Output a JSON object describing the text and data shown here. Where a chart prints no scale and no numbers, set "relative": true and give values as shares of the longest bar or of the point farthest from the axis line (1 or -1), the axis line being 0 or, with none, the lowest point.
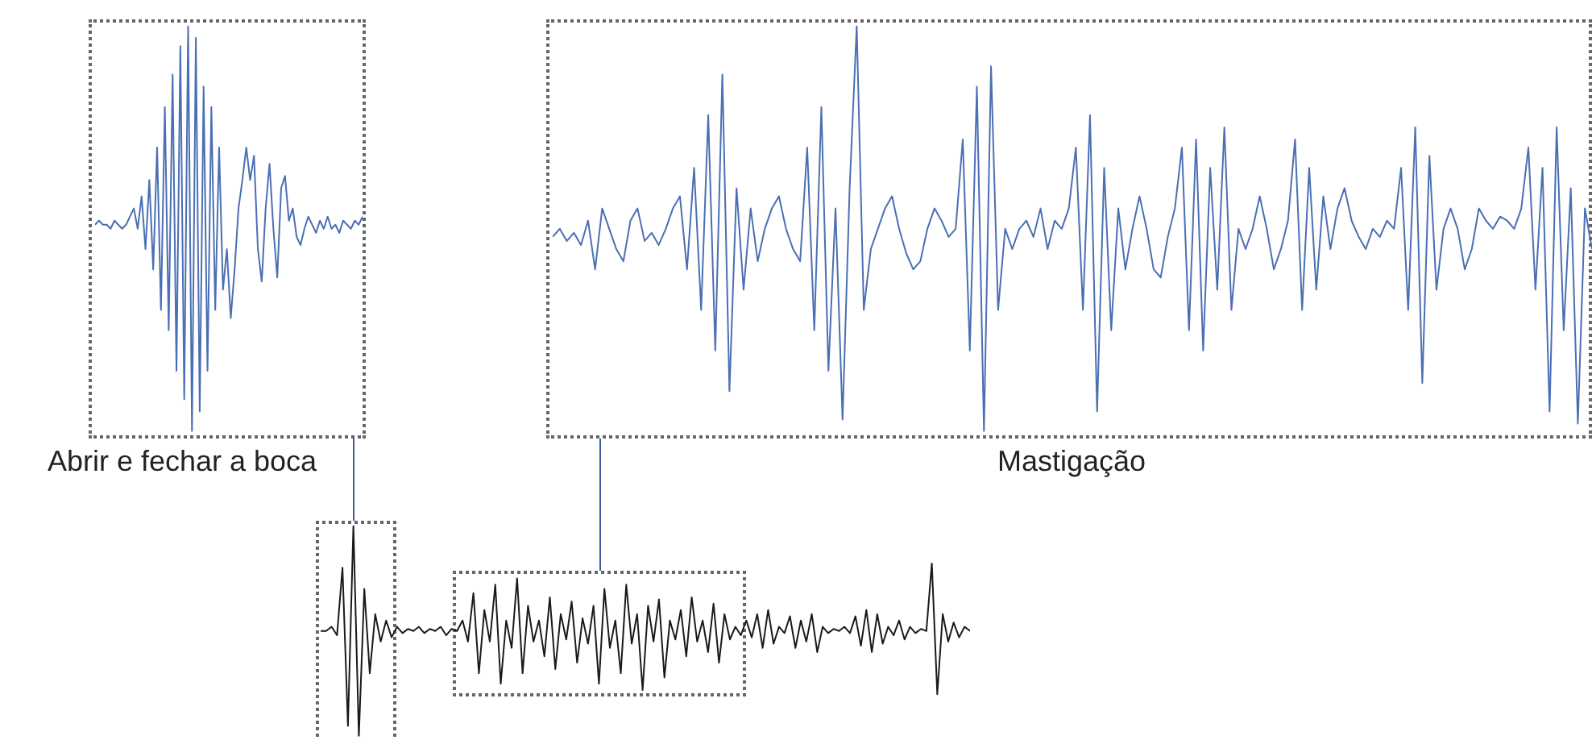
{
  "chart_data": [
    {
      "type": "line",
      "relative": true,
      "xlabel": "Abrir e fechar a boca",
      "color": "#4a6fb3",
      "marker": "none",
      "categories": [
        null,
        null,
        null,
        null,
        null,
        null,
        null,
        null,
        null,
        null,
        null,
        null,
        null,
        null,
        null,
        null,
        null,
        null,
        null,
        null,
        null,
        null,
        null,
        null,
        null,
        null,
        null,
        null,
        null,
        null,
        null,
        null,
        null,
        null,
        null,
        null,
        null,
        null,
        null,
        null,
        null,
        null,
        null,
        null,
        null,
        null,
        null,
        null,
        null,
        null,
        null,
        null,
        null,
        null,
        null,
        null,
        null,
        null,
        null,
        null,
        null,
        null,
        null,
        null,
        null,
        null,
        null,
        null,
        null,
        null
      ],
      "values": [
        0.51,
        0.52,
        0.51,
        0.51,
        0.5,
        0.52,
        0.51,
        0.5,
        0.51,
        0.53,
        0.55,
        0.5,
        0.58,
        0.45,
        0.62,
        0.4,
        0.7,
        0.3,
        0.8,
        0.25,
        0.88,
        0.15,
        0.95,
        0.08,
        1.0,
        0.0,
        0.97,
        0.05,
        0.85,
        0.15,
        0.8,
        0.3,
        0.7,
        0.35,
        0.45,
        0.28,
        0.4,
        0.55,
        0.62,
        0.7,
        0.62,
        0.68,
        0.45,
        0.37,
        0.55,
        0.66,
        0.5,
        0.38,
        0.6,
        0.63,
        0.52,
        0.55,
        0.48,
        0.46,
        0.5,
        0.53,
        0.51,
        0.49,
        0.52,
        0.5,
        0.53,
        0.5,
        0.51,
        0.49,
        0.52,
        0.51,
        0.5,
        0.52,
        0.51,
        0.53
      ]
    },
    {
      "type": "line",
      "relative": true,
      "xlabel": "Mastigação",
      "color": "#4a6fb3",
      "marker": "none",
      "categories": [
        null,
        null,
        null,
        null,
        null,
        null,
        null,
        null,
        null,
        null,
        null,
        null,
        null,
        null,
        null,
        null,
        null,
        null,
        null,
        null,
        null,
        null,
        null,
        null,
        null,
        null,
        null,
        null,
        null,
        null,
        null,
        null,
        null,
        null,
        null,
        null,
        null,
        null,
        null,
        null,
        null,
        null,
        null,
        null,
        null,
        null,
        null,
        null,
        null,
        null,
        null,
        null,
        null,
        null,
        null,
        null,
        null,
        null,
        null,
        null,
        null,
        null,
        null,
        null,
        null,
        null,
        null,
        null,
        null,
        null,
        null,
        null,
        null,
        null,
        null,
        null,
        null,
        null,
        null,
        null,
        null,
        null,
        null,
        null,
        null,
        null,
        null,
        null,
        null,
        null,
        null,
        null,
        null,
        null,
        null,
        null,
        null,
        null,
        null,
        null,
        null,
        null,
        null,
        null,
        null,
        null,
        null,
        null,
        null,
        null,
        null,
        null,
        null,
        null,
        null,
        null,
        null,
        null,
        null,
        null,
        null,
        null,
        null,
        null,
        null,
        null,
        null,
        null,
        null,
        null,
        null,
        null,
        null,
        null,
        null,
        null,
        null,
        null,
        null,
        null,
        null,
        null,
        null,
        null,
        null,
        null,
        null,
        null
      ],
      "values": [
        0.48,
        0.5,
        0.47,
        0.49,
        0.46,
        0.52,
        0.4,
        0.55,
        0.5,
        0.45,
        0.42,
        0.52,
        0.55,
        0.47,
        0.49,
        0.46,
        0.5,
        0.55,
        0.58,
        0.4,
        0.65,
        0.3,
        0.78,
        0.2,
        0.88,
        0.1,
        0.6,
        0.35,
        0.55,
        0.42,
        0.5,
        0.55,
        0.58,
        0.5,
        0.45,
        0.42,
        0.7,
        0.25,
        0.8,
        0.15,
        0.55,
        0.03,
        0.6,
        1.0,
        0.3,
        0.45,
        0.5,
        0.55,
        0.58,
        0.5,
        0.44,
        0.4,
        0.42,
        0.5,
        0.55,
        0.52,
        0.48,
        0.5,
        0.72,
        0.2,
        0.85,
        0.0,
        0.9,
        0.3,
        0.5,
        0.45,
        0.5,
        0.52,
        0.48,
        0.55,
        0.45,
        0.52,
        0.5,
        0.55,
        0.7,
        0.3,
        0.78,
        0.05,
        0.65,
        0.25,
        0.55,
        0.4,
        0.5,
        0.58,
        0.5,
        0.4,
        0.38,
        0.48,
        0.55,
        0.7,
        0.25,
        0.72,
        0.2,
        0.65,
        0.35,
        0.75,
        0.3,
        0.5,
        0.45,
        0.5,
        0.58,
        0.5,
        0.4,
        0.45,
        0.52,
        0.72,
        0.3,
        0.65,
        0.35,
        0.58,
        0.45,
        0.55,
        0.6,
        0.52,
        0.48,
        0.45,
        0.5,
        0.48,
        0.52,
        0.5,
        0.65,
        0.3,
        0.75,
        0.12,
        0.68,
        0.35,
        0.5,
        0.55,
        0.5,
        0.4,
        0.45,
        0.55,
        0.52,
        0.5,
        0.53,
        0.52,
        0.5,
        0.55,
        0.7,
        0.35,
        0.65,
        0.05,
        0.75,
        0.25,
        0.6,
        0.02,
        0.55,
        0.45
      ]
    },
    {
      "type": "line",
      "relative": true,
      "color": "#1a1a1a",
      "marker": "none",
      "categories": [
        null,
        null,
        null,
        null,
        null,
        null,
        null,
        null,
        null,
        null,
        null,
        null,
        null,
        null,
        null,
        null,
        null,
        null,
        null,
        null,
        null,
        null,
        null,
        null,
        null,
        null,
        null,
        null,
        null,
        null,
        null,
        null,
        null,
        null,
        null,
        null,
        null,
        null,
        null,
        null,
        null,
        null,
        null,
        null,
        null,
        null,
        null,
        null,
        null,
        null,
        null,
        null,
        null,
        null,
        null,
        null,
        null,
        null,
        null,
        null,
        null,
        null,
        null,
        null,
        null,
        null,
        null,
        null,
        null,
        null,
        null,
        null,
        null,
        null,
        null,
        null,
        null,
        null,
        null,
        null,
        null,
        null,
        null,
        null,
        null,
        null,
        null,
        null,
        null,
        null,
        null,
        null,
        null,
        null,
        null,
        null,
        null,
        null,
        null,
        null,
        null,
        null,
        null,
        null,
        null,
        null,
        null,
        null,
        null,
        null,
        null,
        null,
        null,
        null,
        null,
        null,
        null,
        null,
        null,
        null
      ],
      "values": [
        0.5,
        0.5,
        0.52,
        0.48,
        0.8,
        0.05,
        1.0,
        0.0,
        0.7,
        0.3,
        0.58,
        0.45,
        0.55,
        0.47,
        0.52,
        0.49,
        0.51,
        0.5,
        0.52,
        0.49,
        0.51,
        0.5,
        0.52,
        0.48,
        0.51,
        0.5,
        0.55,
        0.45,
        0.68,
        0.3,
        0.6,
        0.45,
        0.72,
        0.25,
        0.55,
        0.42,
        0.75,
        0.3,
        0.62,
        0.45,
        0.55,
        0.38,
        0.66,
        0.32,
        0.58,
        0.46,
        0.64,
        0.35,
        0.56,
        0.44,
        0.62,
        0.25,
        0.7,
        0.42,
        0.55,
        0.3,
        0.72,
        0.44,
        0.58,
        0.22,
        0.62,
        0.45,
        0.65,
        0.28,
        0.55,
        0.46,
        0.6,
        0.38,
        0.66,
        0.45,
        0.55,
        0.4,
        0.63,
        0.35,
        0.58,
        0.46,
        0.52,
        0.48,
        0.55,
        0.47,
        0.58,
        0.42,
        0.6,
        0.44,
        0.52,
        0.49,
        0.57,
        0.42,
        0.55,
        0.45,
        0.58,
        0.4,
        0.52,
        0.49,
        0.51,
        0.5,
        0.52,
        0.49,
        0.57,
        0.43,
        0.6,
        0.4,
        0.58,
        0.44,
        0.52,
        0.48,
        0.55,
        0.46,
        0.52,
        0.49,
        0.51,
        0.5,
        0.82,
        0.2,
        0.58,
        0.45,
        0.54,
        0.47,
        0.52,
        0.5
      ]
    }
  ]
}
